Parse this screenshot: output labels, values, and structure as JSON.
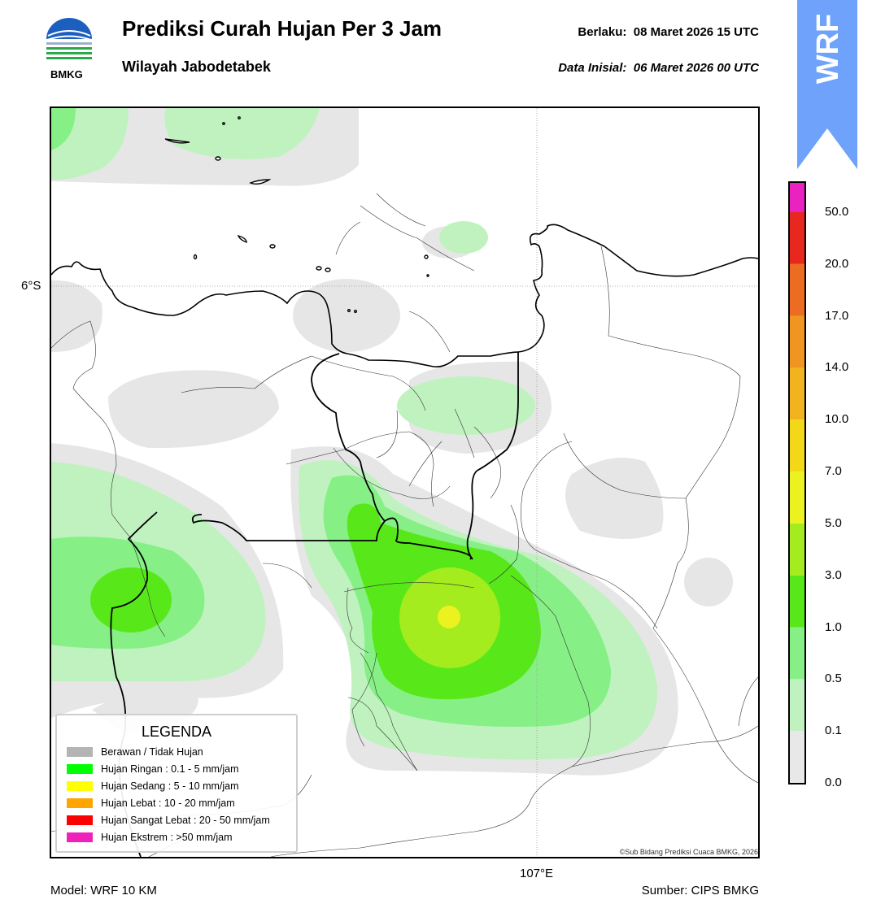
{
  "header": {
    "logo_text": "BMKG",
    "title": "Prediksi Curah Hujan Per 3 Jam",
    "subtitle": "Wilayah Jabodetabek",
    "valid_label": "Berlaku:",
    "valid_time": "08 Maret 2026 15 UTC",
    "init_label": "Data Inisial:",
    "init_time": "06 Maret 2026 00 UTC"
  },
  "badge": {
    "text": "WRF",
    "color": "#6ea2fb"
  },
  "map": {
    "lat_label": "6°S",
    "lon_label": "107°E",
    "credit": "©Sub Bidang Prediksi Cuaca BMKG, 2026"
  },
  "legend": {
    "title": "LEGENDA",
    "items": [
      {
        "label": "Berawan / Tidak Hujan",
        "color": "#b4b4b4"
      },
      {
        "label": "Hujan Ringan : 0.1 - 5 mm/jam",
        "color": "#00ff00"
      },
      {
        "label": "Hujan Sedang : 5 - 10 mm/jam",
        "color": "#ffff00"
      },
      {
        "label": "Hujan Lebat : 10 - 20 mm/jam",
        "color": "#ffa500"
      },
      {
        "label": "Hujan Sangat Lebat : 20 - 50 mm/jam",
        "color": "#ff0000"
      },
      {
        "label": "Hujan Ekstrem : >50 mm/jam",
        "color": "#ee22bb"
      }
    ]
  },
  "colorbar": {
    "ticks": [
      "0.0",
      "0.1",
      "0.5",
      "1.0",
      "3.0",
      "5.0",
      "7.0",
      "10.0",
      "14.0",
      "17.0",
      "20.0",
      "50.0"
    ],
    "colors": [
      "#e8e8e8",
      "#c0f2c0",
      "#86f086",
      "#58e81a",
      "#a4ec1e",
      "#ecf220",
      "#f3d818",
      "#f1b41e",
      "#ef9622",
      "#ec6c21",
      "#e8281f",
      "#ea22c0"
    ]
  },
  "footer": {
    "model": "Model: WRF 10 KM",
    "source": "Sumber: CIPS BMKG"
  }
}
